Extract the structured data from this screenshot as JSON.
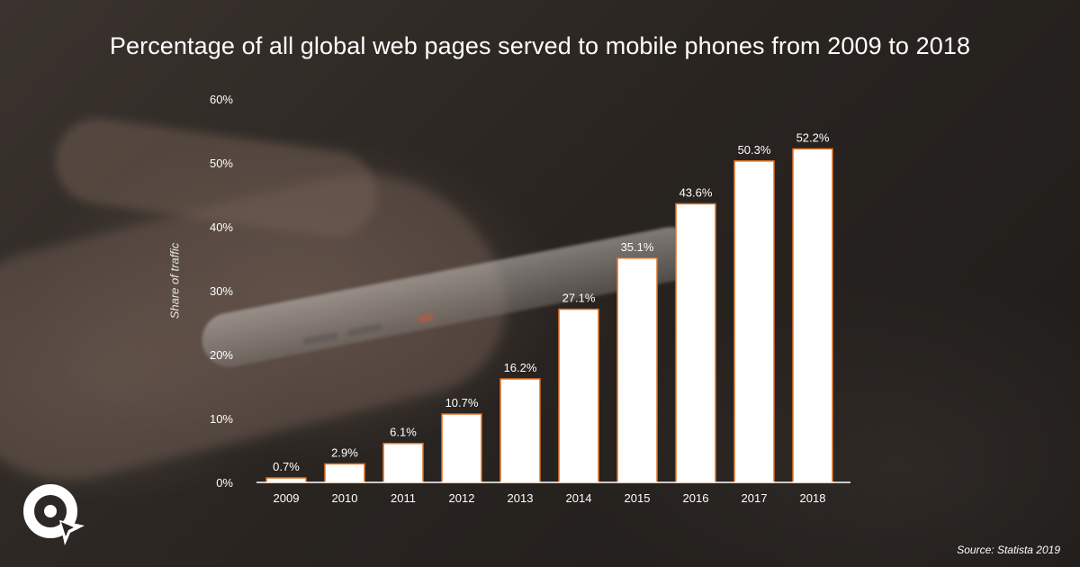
{
  "title": "Percentage of all global web pages served to mobile phones from 2009 to 2018",
  "source": "Source: Statista 2019",
  "colors": {
    "bar_fill": "#ffffff",
    "bar_edge": "#e07020",
    "text": "#ffffff",
    "axis": "#ffffff"
  },
  "logo_icon": "circular-arrow-logo-icon",
  "chart_data": {
    "type": "bar",
    "title": "Percentage of all global web pages served to mobile phones from 2009 to 2018",
    "xlabel": "",
    "ylabel": "Share of traffic",
    "categories": [
      "2009",
      "2010",
      "2011",
      "2012",
      "2013",
      "2014",
      "2015",
      "2016",
      "2017",
      "2018"
    ],
    "values": [
      0.7,
      2.9,
      6.1,
      10.7,
      16.2,
      27.1,
      35.1,
      43.6,
      50.3,
      52.2
    ],
    "value_labels": [
      "0.7%",
      "2.9%",
      "6.1%",
      "10.7%",
      "16.2%",
      "27.1%",
      "35.1%",
      "43.6%",
      "50.3%",
      "52.2%"
    ],
    "ylim": [
      0,
      60
    ],
    "yticks": [
      "0%",
      "10%",
      "20%",
      "30%",
      "40%",
      "50%",
      "60%"
    ],
    "grid": false,
    "legend": "none"
  }
}
